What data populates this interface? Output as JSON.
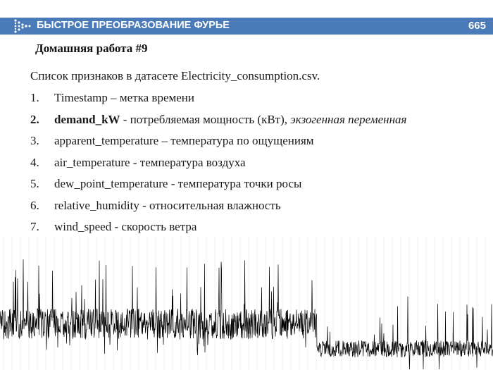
{
  "header": {
    "title": "БЫСТРОЕ ПРЕОБРАЗОВАНИЕ ФУРЬЕ",
    "page_number": "665",
    "accent_color": "#4a7ab8"
  },
  "homework_title": "Домашняя работа #9",
  "intro_text": "Список признаков в датасете Electricity_consumption.csv.",
  "features": [
    {
      "num": "1.",
      "name": "Timestamp",
      "desc": " – метка времени",
      "extra": ""
    },
    {
      "num": "2.",
      "name": "demand_kW",
      "desc": " - потребляемая мощность (кВт), ",
      "extra": "экзогенная переменная"
    },
    {
      "num": "3.",
      "name": "apparent_temperature",
      "desc": " – температура по ощущениям",
      "extra": ""
    },
    {
      "num": "4.",
      "name": "air_temperature",
      "desc": " - температура воздуха",
      "extra": ""
    },
    {
      "num": "5.",
      "name": "dew_point_temperature",
      "desc": " - температура точки росы",
      "extra": ""
    },
    {
      "num": "6.",
      "name": "relative_humidity",
      "desc": " - относительная влажность",
      "extra": ""
    },
    {
      "num": "7.",
      "name": "wind_speed",
      "desc": " - скорость ветра",
      "extra": ""
    }
  ],
  "decoration": {
    "signal_color": "#000000",
    "grid_color": "#e6e6e6",
    "logo_icon": "dotted-arrow-logo"
  }
}
